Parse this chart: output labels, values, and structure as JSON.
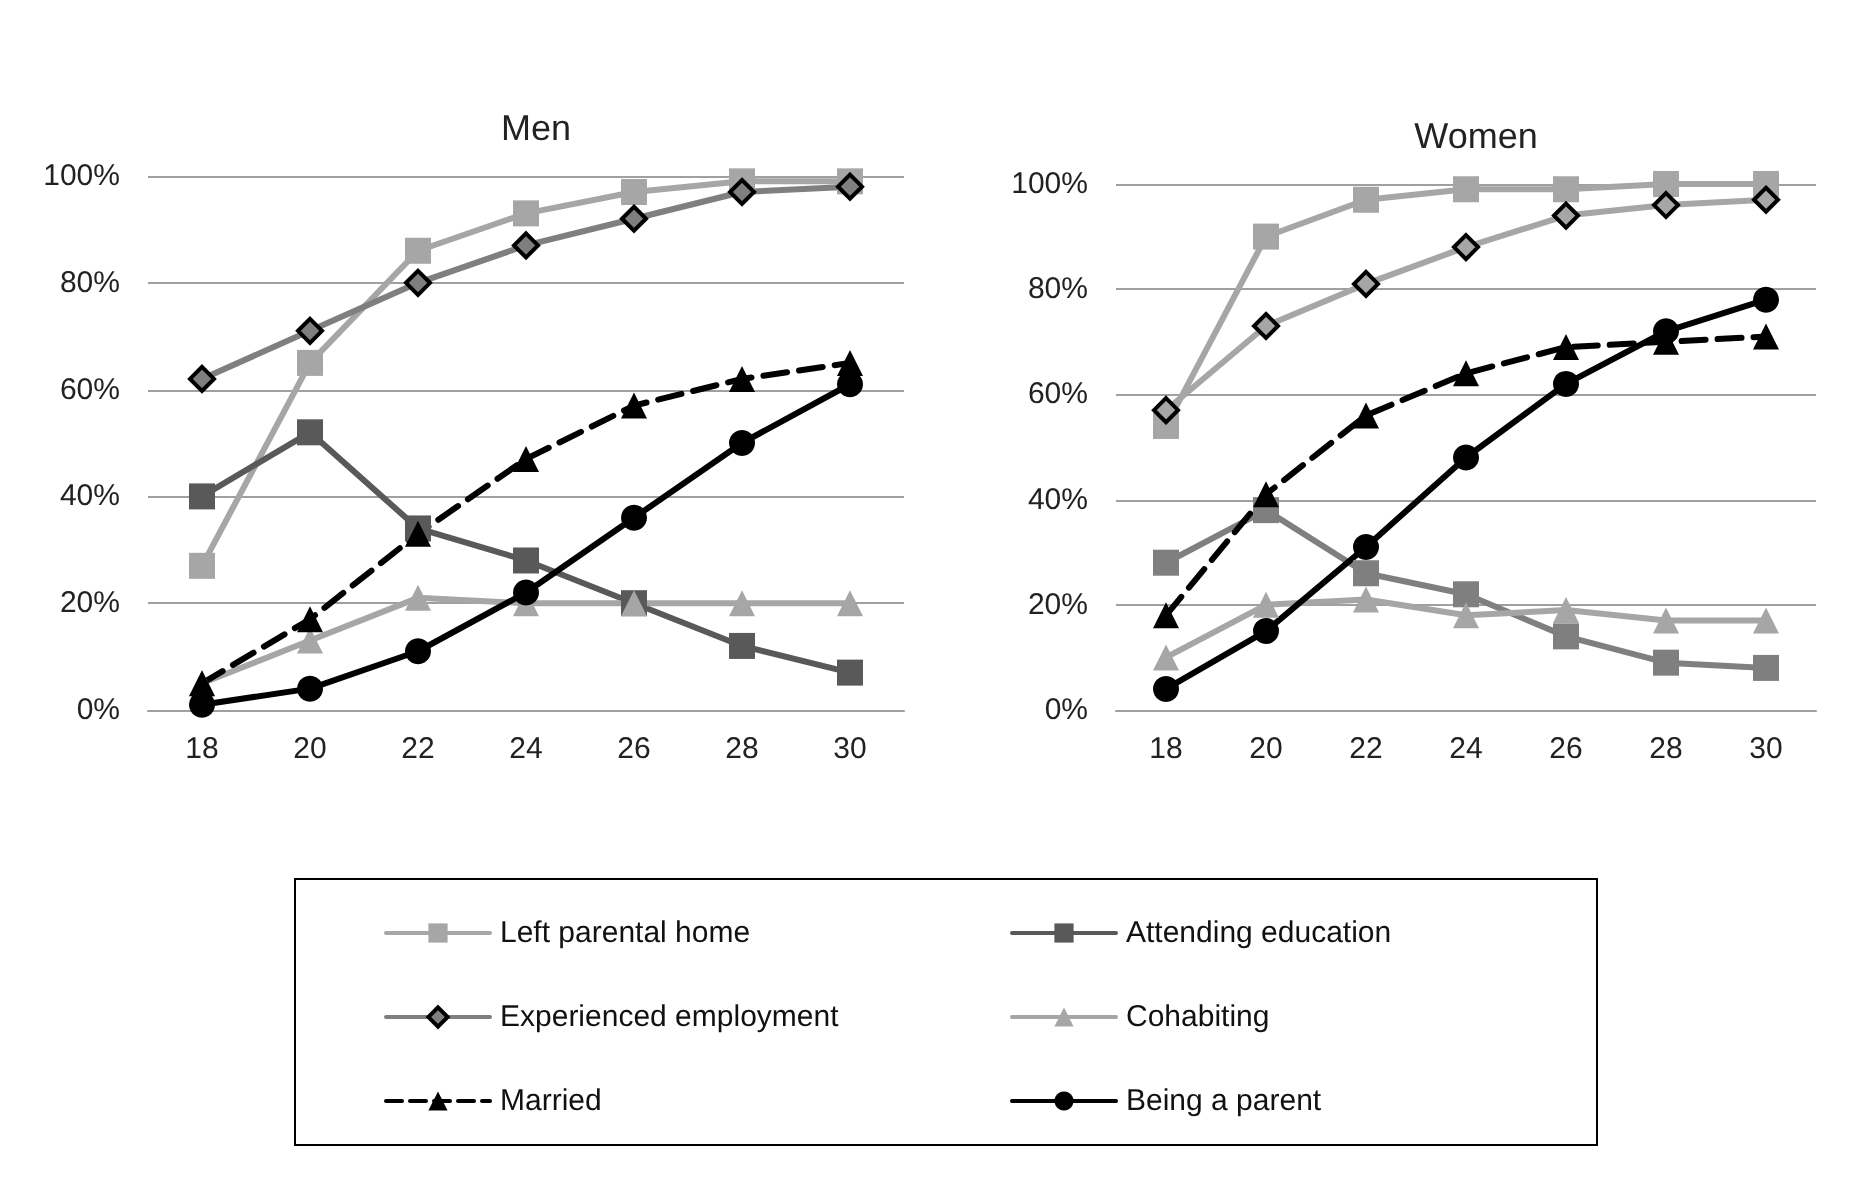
{
  "chart_data": [
    {
      "type": "line",
      "title": "Men",
      "categories": [
        "18",
        "20",
        "22",
        "24",
        "26",
        "28",
        "30"
      ],
      "ylim": [
        0,
        100
      ],
      "yticks": [
        {
          "value": 0,
          "label": "0%"
        },
        {
          "value": 20,
          "label": "20%"
        },
        {
          "value": 40,
          "label": "40%"
        },
        {
          "value": 60,
          "label": "60%"
        },
        {
          "value": 80,
          "label": "80%"
        },
        {
          "value": 100,
          "label": "100%"
        }
      ],
      "grid": "y",
      "legend": "bottom",
      "series": [
        {
          "name": "Left parental home",
          "color": "#a6a6a6",
          "marker": "square",
          "values": [
            27,
            65,
            86,
            93,
            97,
            99,
            99
          ]
        },
        {
          "name": "Attending education",
          "color": "#595959",
          "marker": "square",
          "values": [
            40,
            52,
            34,
            28,
            20,
            12,
            7
          ]
        },
        {
          "name": "Experienced employment",
          "color": "#7f7f7f",
          "marker": "diamond",
          "values": [
            62,
            71,
            80,
            87,
            92,
            97,
            98
          ]
        },
        {
          "name": "Cohabiting",
          "color": "#a6a6a6",
          "marker": "triangle",
          "values": [
            5,
            13,
            21,
            20,
            20,
            20,
            20
          ]
        },
        {
          "name": "Married",
          "color": "#000000",
          "marker": "triangle",
          "line_style": "dashed",
          "values": [
            5,
            17,
            33,
            47,
            57,
            62,
            65
          ]
        },
        {
          "name": "Being a parent",
          "color": "#000000",
          "marker": "circle",
          "values": [
            1,
            4,
            11,
            22,
            36,
            50,
            61
          ]
        }
      ]
    },
    {
      "type": "line",
      "title": "Women",
      "categories": [
        "18",
        "20",
        "22",
        "24",
        "26",
        "28",
        "30"
      ],
      "ylim": [
        0,
        100
      ],
      "yticks": [
        {
          "value": 0,
          "label": "0%"
        },
        {
          "value": 20,
          "label": "20%"
        },
        {
          "value": 40,
          "label": "40%"
        },
        {
          "value": 60,
          "label": "60%"
        },
        {
          "value": 80,
          "label": "80%"
        },
        {
          "value": 100,
          "label": "100%"
        }
      ],
      "grid": "y",
      "series": [
        {
          "color": "#a6a6a6",
          "marker": "square",
          "values": [
            54,
            90,
            97,
            99,
            99,
            100,
            100
          ]
        },
        {
          "color": "#7f7f7f",
          "marker": "square",
          "values": [
            28,
            38,
            26,
            22,
            14,
            9,
            8
          ]
        },
        {
          "color": "#a6a6a6",
          "marker": "diamond",
          "values": [
            57,
            73,
            81,
            88,
            94,
            96,
            97
          ]
        },
        {
          "color": "#a6a6a6",
          "marker": "triangle",
          "values": [
            10,
            20,
            21,
            18,
            19,
            17,
            17
          ]
        },
        {
          "color": "#000000",
          "marker": "triangle",
          "line_style": "dashed",
          "values": [
            18,
            41,
            56,
            64,
            69,
            70,
            71
          ]
        },
        {
          "color": "#000000",
          "marker": "circle",
          "values": [
            4,
            15,
            31,
            48,
            62,
            72,
            78
          ]
        }
      ]
    }
  ]
}
